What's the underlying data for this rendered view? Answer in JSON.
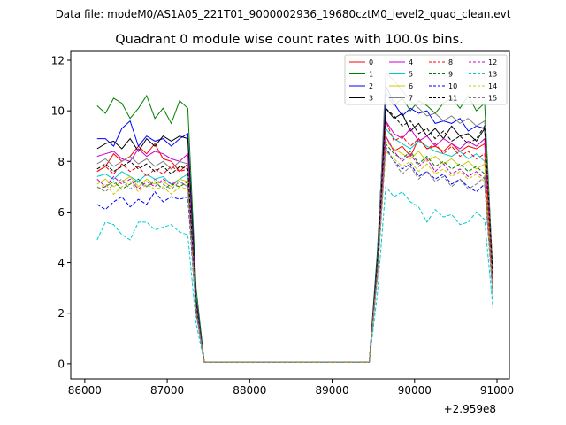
{
  "header": {
    "data_file": "Data file: modeM0/AS1A05_221T01_9000002936_19680cztM0_level2_quad_clean.evt"
  },
  "chart_data": {
    "type": "line",
    "title": "Quadrant 0 module wise count rates with 100.0s bins.",
    "xlabel": "",
    "ylabel": "",
    "offset_label": "+2.959e8",
    "xlim": [
      85830,
      91150
    ],
    "ylim": [
      -0.6,
      12.35
    ],
    "x_ticks": [
      86000,
      87000,
      88000,
      89000,
      90000,
      91000
    ],
    "x_tick_labels": [
      "86000",
      "87000",
      "88000",
      "89000",
      "90000",
      "91000"
    ],
    "y_ticks": [
      0,
      2,
      4,
      6,
      8,
      10,
      12
    ],
    "y_tick_labels": [
      "0",
      "2",
      "4",
      "6",
      "8",
      "10",
      "12"
    ],
    "grid": false,
    "legend_placement": "top-right",
    "x": [
      86150,
      86250,
      86350,
      86450,
      86550,
      86650,
      86750,
      86850,
      86950,
      87050,
      87150,
      87250,
      87350,
      87450,
      87550,
      87650,
      87750,
      87850,
      87950,
      88050,
      88150,
      88250,
      88350,
      88450,
      88550,
      88650,
      88750,
      88850,
      88950,
      89050,
      89150,
      89250,
      89350,
      89450,
      89550,
      89650,
      89750,
      89850,
      89950,
      90050,
      90150,
      90250,
      90350,
      90450,
      90550,
      90650,
      90750,
      90850,
      90950
    ],
    "series": [
      {
        "name": "0",
        "color": "#ff0000",
        "dash": "solid",
        "values": [
          7.6,
          7.8,
          8.3,
          8.0,
          8.2,
          8.6,
          8.3,
          8.7,
          8.1,
          8.0,
          7.6,
          7.9,
          2.4,
          0.05,
          0.05,
          0.05,
          0.05,
          0.05,
          0.05,
          0.05,
          0.05,
          0.05,
          0.05,
          0.05,
          0.05,
          0.05,
          0.05,
          0.05,
          0.05,
          0.05,
          0.05,
          0.05,
          0.05,
          0.05,
          4.0,
          9.0,
          8.4,
          8.6,
          8.2,
          8.9,
          8.5,
          8.6,
          8.4,
          8.7,
          8.4,
          8.6,
          8.5,
          8.7,
          3.2
        ]
      },
      {
        "name": "1",
        "color": "#008000",
        "dash": "solid",
        "values": [
          10.2,
          9.9,
          10.5,
          10.3,
          9.7,
          10.1,
          10.6,
          9.7,
          10.1,
          9.5,
          10.4,
          10.1,
          3.0,
          0.05,
          0.05,
          0.05,
          0.05,
          0.05,
          0.05,
          0.05,
          0.05,
          0.05,
          0.05,
          0.05,
          0.05,
          0.05,
          0.05,
          0.05,
          0.05,
          0.05,
          0.05,
          0.05,
          0.05,
          0.05,
          4.5,
          10.7,
          10.2,
          10.5,
          10.0,
          10.4,
          10.2,
          9.9,
          10.3,
          10.5,
          10.1,
          10.6,
          10.0,
          10.3,
          3.5
        ]
      },
      {
        "name": "2",
        "color": "#0000ff",
        "dash": "solid",
        "values": [
          8.9,
          8.9,
          8.6,
          9.3,
          9.6,
          8.6,
          9.0,
          8.8,
          8.9,
          8.6,
          8.9,
          9.1,
          2.6,
          0.05,
          0.05,
          0.05,
          0.05,
          0.05,
          0.05,
          0.05,
          0.05,
          0.05,
          0.05,
          0.05,
          0.05,
          0.05,
          0.05,
          0.05,
          0.05,
          0.05,
          0.05,
          0.05,
          0.05,
          0.05,
          4.2,
          11.0,
          10.3,
          9.8,
          10.1,
          9.9,
          10.0,
          9.5,
          9.6,
          9.5,
          9.7,
          9.2,
          9.4,
          9.3,
          3.4
        ]
      },
      {
        "name": "3",
        "color": "#000000",
        "dash": "solid",
        "values": [
          8.5,
          8.7,
          8.8,
          8.5,
          8.9,
          8.4,
          8.9,
          8.6,
          9.0,
          8.8,
          9.0,
          8.9,
          2.5,
          0.05,
          0.05,
          0.05,
          0.05,
          0.05,
          0.05,
          0.05,
          0.05,
          0.05,
          0.05,
          0.05,
          0.05,
          0.05,
          0.05,
          0.05,
          0.05,
          0.05,
          0.05,
          0.05,
          0.05,
          0.05,
          4.1,
          10.1,
          9.7,
          9.9,
          9.2,
          9.5,
          9.0,
          9.3,
          8.9,
          9.4,
          9.0,
          9.1,
          8.8,
          9.3,
          3.3
        ]
      },
      {
        "name": "4",
        "color": "#cc00cc",
        "dash": "solid",
        "values": [
          8.2,
          8.3,
          8.4,
          8.1,
          8.0,
          8.5,
          8.2,
          8.4,
          8.3,
          8.1,
          8.0,
          8.3,
          2.4,
          0.05,
          0.05,
          0.05,
          0.05,
          0.05,
          0.05,
          0.05,
          0.05,
          0.05,
          0.05,
          0.05,
          0.05,
          0.05,
          0.05,
          0.05,
          0.05,
          0.05,
          0.05,
          0.05,
          0.05,
          0.05,
          4.0,
          9.6,
          9.1,
          8.9,
          9.3,
          8.8,
          9.0,
          8.6,
          8.9,
          8.7,
          8.5,
          8.8,
          8.6,
          8.9,
          3.2
        ]
      },
      {
        "name": "5",
        "color": "#00cccc",
        "dash": "solid",
        "values": [
          7.4,
          7.5,
          7.3,
          7.6,
          7.4,
          7.2,
          7.5,
          7.3,
          7.4,
          7.1,
          7.3,
          7.5,
          2.2,
          0.05,
          0.05,
          0.05,
          0.05,
          0.05,
          0.05,
          0.05,
          0.05,
          0.05,
          0.05,
          0.05,
          0.05,
          0.05,
          0.05,
          0.05,
          0.05,
          0.05,
          0.05,
          0.05,
          0.05,
          0.05,
          3.8,
          9.3,
          8.9,
          8.7,
          8.5,
          8.8,
          8.6,
          8.4,
          8.3,
          8.2,
          8.4,
          8.1,
          8.3,
          8.0,
          3.0
        ]
      },
      {
        "name": "6",
        "color": "#cccc00",
        "dash": "solid",
        "values": [
          7.1,
          7.3,
          7.0,
          7.2,
          7.4,
          7.0,
          7.3,
          7.1,
          7.2,
          7.0,
          7.3,
          7.2,
          2.2,
          0.05,
          0.05,
          0.05,
          0.05,
          0.05,
          0.05,
          0.05,
          0.05,
          0.05,
          0.05,
          0.05,
          0.05,
          0.05,
          0.05,
          0.05,
          0.05,
          0.05,
          0.05,
          0.05,
          0.05,
          0.05,
          3.7,
          8.8,
          8.5,
          8.3,
          8.1,
          8.4,
          8.0,
          8.2,
          7.9,
          8.1,
          7.8,
          8.0,
          7.7,
          7.9,
          2.9
        ]
      },
      {
        "name": "7",
        "color": "#808080",
        "dash": "solid",
        "values": [
          7.9,
          8.1,
          7.8,
          8.0,
          8.2,
          7.9,
          8.1,
          7.8,
          8.0,
          7.7,
          8.0,
          7.9,
          2.3,
          0.05,
          0.05,
          0.05,
          0.05,
          0.05,
          0.05,
          0.05,
          0.05,
          0.05,
          0.05,
          0.05,
          0.05,
          0.05,
          0.05,
          0.05,
          0.05,
          0.05,
          0.05,
          0.05,
          0.05,
          0.05,
          3.9,
          11.5,
          11.2,
          10.8,
          10.4,
          10.1,
          9.8,
          9.9,
          9.6,
          9.8,
          9.5,
          9.7,
          9.4,
          9.6,
          3.6
        ]
      },
      {
        "name": "8",
        "color": "#ff0000",
        "dash": "dashed",
        "values": [
          7.6,
          7.8,
          7.5,
          7.9,
          7.6,
          7.8,
          7.4,
          7.7,
          7.5,
          7.8,
          7.6,
          7.7,
          2.3,
          0.05,
          0.05,
          0.05,
          0.05,
          0.05,
          0.05,
          0.05,
          0.05,
          0.05,
          0.05,
          0.05,
          0.05,
          0.05,
          0.05,
          0.05,
          0.05,
          0.05,
          0.05,
          0.05,
          0.05,
          0.05,
          3.8,
          9.6,
          8.8,
          9.0,
          8.6,
          8.9,
          8.5,
          8.7,
          8.3,
          8.6,
          8.2,
          8.4,
          8.1,
          8.3,
          3.0
        ]
      },
      {
        "name": "9",
        "color": "#008000",
        "dash": "dashed",
        "values": [
          6.9,
          7.0,
          7.2,
          6.9,
          7.1,
          7.3,
          7.0,
          7.2,
          6.9,
          7.1,
          7.0,
          7.2,
          2.1,
          0.05,
          0.05,
          0.05,
          0.05,
          0.05,
          0.05,
          0.05,
          0.05,
          0.05,
          0.05,
          0.05,
          0.05,
          0.05,
          0.05,
          0.05,
          0.05,
          0.05,
          0.05,
          0.05,
          0.05,
          0.05,
          3.6,
          8.7,
          8.3,
          8.1,
          8.4,
          7.9,
          8.2,
          7.8,
          8.0,
          7.7,
          7.9,
          7.6,
          7.8,
          7.5,
          2.8
        ]
      },
      {
        "name": "10",
        "color": "#0000ff",
        "dash": "dashed",
        "values": [
          6.3,
          6.1,
          6.4,
          6.6,
          6.2,
          6.5,
          6.3,
          6.8,
          6.4,
          6.6,
          6.5,
          6.6,
          2.0,
          0.05,
          0.05,
          0.05,
          0.05,
          0.05,
          0.05,
          0.05,
          0.05,
          0.05,
          0.05,
          0.05,
          0.05,
          0.05,
          0.05,
          0.05,
          0.05,
          0.05,
          0.05,
          0.05,
          0.05,
          0.05,
          3.5,
          8.5,
          8.0,
          7.7,
          7.9,
          7.4,
          7.6,
          7.3,
          7.5,
          7.1,
          7.3,
          7.0,
          6.8,
          7.1,
          2.6
        ]
      },
      {
        "name": "11",
        "color": "#000000",
        "dash": "dashed",
        "values": [
          7.7,
          7.9,
          7.6,
          7.8,
          8.0,
          7.7,
          7.9,
          7.6,
          7.8,
          7.5,
          7.8,
          7.7,
          2.3,
          0.05,
          0.05,
          0.05,
          0.05,
          0.05,
          0.05,
          0.05,
          0.05,
          0.05,
          0.05,
          0.05,
          0.05,
          0.05,
          0.05,
          0.05,
          0.05,
          0.05,
          0.05,
          0.05,
          0.05,
          0.05,
          3.9,
          10.1,
          9.8,
          9.4,
          9.6,
          9.1,
          9.3,
          8.9,
          9.2,
          8.8,
          9.0,
          8.7,
          8.9,
          9.4,
          3.4
        ]
      },
      {
        "name": "12",
        "color": "#cc00cc",
        "dash": "dashed",
        "values": [
          7.3,
          7.0,
          7.4,
          7.1,
          7.3,
          6.9,
          7.2,
          7.0,
          7.3,
          7.1,
          7.2,
          7.0,
          2.1,
          0.05,
          0.05,
          0.05,
          0.05,
          0.05,
          0.05,
          0.05,
          0.05,
          0.05,
          0.05,
          0.05,
          0.05,
          0.05,
          0.05,
          0.05,
          0.05,
          0.05,
          0.05,
          0.05,
          0.05,
          0.05,
          3.6,
          9.0,
          8.4,
          8.0,
          8.3,
          7.8,
          8.1,
          7.6,
          7.9,
          7.5,
          7.7,
          7.4,
          7.6,
          7.3,
          2.8
        ]
      },
      {
        "name": "13",
        "color": "#00cccc",
        "dash": "dashed",
        "values": [
          4.9,
          5.6,
          5.5,
          5.1,
          4.9,
          5.6,
          5.6,
          5.3,
          5.4,
          5.5,
          5.2,
          5.1,
          1.6,
          0.05,
          0.05,
          0.05,
          0.05,
          0.05,
          0.05,
          0.05,
          0.05,
          0.05,
          0.05,
          0.05,
          0.05,
          0.05,
          0.05,
          0.05,
          0.05,
          0.05,
          0.05,
          0.05,
          0.05,
          0.05,
          2.8,
          7.0,
          6.6,
          6.8,
          6.4,
          6.2,
          5.6,
          6.1,
          5.8,
          5.9,
          5.5,
          5.6,
          6.0,
          5.7,
          2.2
        ]
      },
      {
        "name": "14",
        "color": "#cccc00",
        "dash": "dashed",
        "values": [
          6.9,
          7.1,
          6.7,
          7.0,
          7.2,
          6.8,
          7.1,
          6.9,
          7.0,
          6.7,
          7.0,
          6.9,
          2.1,
          0.05,
          0.05,
          0.05,
          0.05,
          0.05,
          0.05,
          0.05,
          0.05,
          0.05,
          0.05,
          0.05,
          0.05,
          0.05,
          0.05,
          0.05,
          0.05,
          0.05,
          0.05,
          0.05,
          0.05,
          0.05,
          3.6,
          8.4,
          8.1,
          7.8,
          8.0,
          7.6,
          7.9,
          7.5,
          7.7,
          7.4,
          7.6,
          7.3,
          7.5,
          7.2,
          2.7
        ]
      },
      {
        "name": "15",
        "color": "#808080",
        "dash": "dashed",
        "values": [
          7.0,
          6.8,
          7.1,
          7.3,
          6.9,
          7.2,
          7.0,
          7.3,
          7.1,
          6.9,
          7.2,
          7.0,
          2.1,
          0.05,
          0.05,
          0.05,
          0.05,
          0.05,
          0.05,
          0.05,
          0.05,
          0.05,
          0.05,
          0.05,
          0.05,
          0.05,
          0.05,
          0.05,
          0.05,
          0.05,
          0.05,
          0.05,
          0.05,
          0.05,
          3.5,
          8.6,
          8.0,
          7.5,
          7.8,
          7.3,
          7.6,
          7.2,
          7.4,
          7.0,
          7.3,
          6.9,
          7.1,
          7.4,
          2.7
        ]
      }
    ]
  }
}
